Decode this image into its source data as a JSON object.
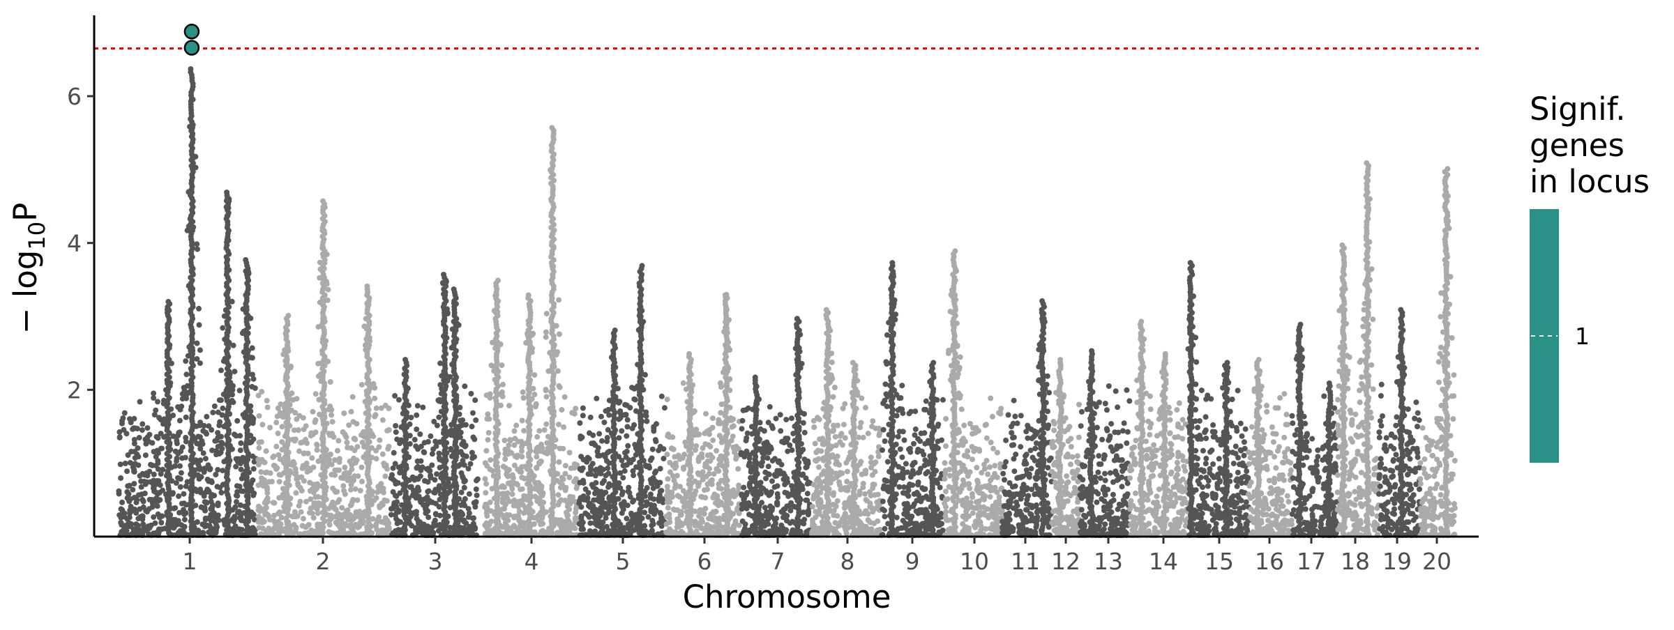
{
  "chart_data": {
    "type": "scatter",
    "subtype": "manhattan",
    "title": "",
    "xlabel": "Chromosome",
    "ylabel_main": "− log",
    "ylabel_sub": "10",
    "ylabel_tail": "P",
    "y_ticks": [
      2,
      4,
      6
    ],
    "ylim": [
      0,
      7.1
    ],
    "threshold": {
      "value": 6.65,
      "color": "#ff0000",
      "style": "dotted"
    },
    "colors": {
      "dark": "#555555",
      "light": "#aaaaaa",
      "highlight": "#2a9187"
    },
    "chromosomes": [
      {
        "label": "1",
        "peaks": [
          {
            "pos": 0.53,
            "height": 6.4
          },
          {
            "pos": 0.36,
            "height": 3.2
          },
          {
            "pos": 0.79,
            "height": 4.7
          },
          {
            "pos": 0.93,
            "height": 3.8
          }
        ]
      },
      {
        "label": "2",
        "peaks": [
          {
            "pos": 0.5,
            "height": 4.6
          },
          {
            "pos": 0.22,
            "height": 3.05
          },
          {
            "pos": 0.84,
            "height": 3.45
          }
        ]
      },
      {
        "label": "3",
        "peaks": [
          {
            "pos": 0.62,
            "height": 3.6
          },
          {
            "pos": 0.17,
            "height": 2.45
          },
          {
            "pos": 0.74,
            "height": 3.4
          }
        ]
      },
      {
        "label": "4",
        "peaks": [
          {
            "pos": 0.73,
            "height": 5.6
          },
          {
            "pos": 0.13,
            "height": 3.5
          },
          {
            "pos": 0.48,
            "height": 3.3
          }
        ]
      },
      {
        "label": "5",
        "peaks": [
          {
            "pos": 0.72,
            "height": 3.7
          },
          {
            "pos": 0.41,
            "height": 2.85
          }
        ]
      },
      {
        "label": "6",
        "peaks": [
          {
            "pos": 0.82,
            "height": 3.3
          },
          {
            "pos": 0.33,
            "height": 2.5
          }
        ]
      },
      {
        "label": "7",
        "peaks": [
          {
            "pos": 0.82,
            "height": 3.0
          },
          {
            "pos": 0.22,
            "height": 2.2
          }
        ]
      },
      {
        "label": "8",
        "peaks": [
          {
            "pos": 0.23,
            "height": 3.1
          },
          {
            "pos": 0.62,
            "height": 2.4
          }
        ]
      },
      {
        "label": "9",
        "peaks": [
          {
            "pos": 0.17,
            "height": 3.75
          },
          {
            "pos": 0.83,
            "height": 2.4
          }
        ]
      },
      {
        "label": "10",
        "peaks": [
          {
            "pos": 0.17,
            "height": 3.9
          }
        ]
      },
      {
        "label": "11",
        "peaks": [
          {
            "pos": 0.82,
            "height": 3.25
          }
        ]
      },
      {
        "label": "12",
        "peaks": [
          {
            "pos": 0.3,
            "height": 2.45
          }
        ]
      },
      {
        "label": "13",
        "peaks": [
          {
            "pos": 0.23,
            "height": 2.55
          }
        ]
      },
      {
        "label": "14",
        "peaks": [
          {
            "pos": 0.2,
            "height": 2.95
          },
          {
            "pos": 0.6,
            "height": 2.5
          }
        ]
      },
      {
        "label": "15",
        "peaks": [
          {
            "pos": 0.05,
            "height": 3.75
          },
          {
            "pos": 0.63,
            "height": 2.4
          }
        ]
      },
      {
        "label": "16",
        "peaks": [
          {
            "pos": 0.22,
            "height": 2.45
          }
        ]
      },
      {
        "label": "17",
        "peaks": [
          {
            "pos": 0.18,
            "height": 2.9
          },
          {
            "pos": 0.83,
            "height": 2.1
          }
        ]
      },
      {
        "label": "18",
        "peaks": [
          {
            "pos": 0.15,
            "height": 4.0
          },
          {
            "pos": 0.72,
            "height": 5.1
          }
        ]
      },
      {
        "label": "19",
        "peaks": [
          {
            "pos": 0.55,
            "height": 3.1
          }
        ]
      },
      {
        "label": "20",
        "peaks": [
          {
            "pos": 0.75,
            "height": 5.05
          }
        ]
      }
    ],
    "highlighted_points": [
      {
        "chromosome": "1",
        "y": 6.88
      },
      {
        "chromosome": "1",
        "y": 6.66
      }
    ],
    "legend": {
      "title_lines": [
        "Signif.",
        "genes",
        "in locus"
      ],
      "label": "1",
      "color": "#2a9187"
    }
  }
}
